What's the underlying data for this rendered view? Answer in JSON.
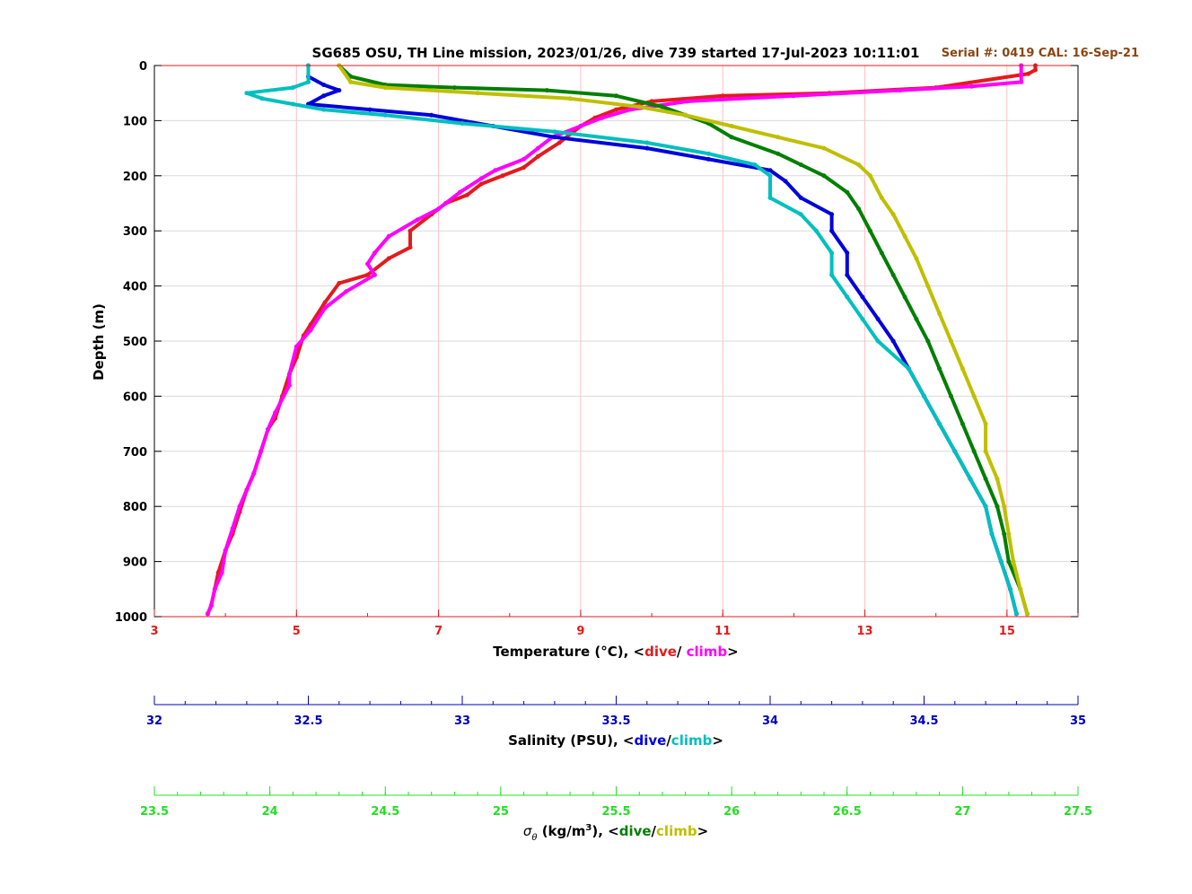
{
  "chart_data": {
    "type": "scatter",
    "title": "SG685 OSU, TH Line mission, 2023/01/26, dive 739 started 17-Jul-2023 10:11:01",
    "serial_label": "Serial #: 0419  CAL: 16-Sep-21",
    "ylabel": "Depth (m)",
    "ylim": [
      0,
      1000
    ],
    "y_reversed": true,
    "yticks": [
      "0",
      "100",
      "200",
      "300",
      "400",
      "500",
      "600",
      "700",
      "800",
      "900",
      "1000"
    ],
    "grid": true,
    "legend": "in axis labels",
    "colors": {
      "temp_dive": "#e41a1c",
      "temp_climb": "#ff00ff",
      "sal_dive": "#0000dd",
      "sal_climb": "#00bfbf",
      "sig_dive": "#007f00",
      "sig_climb": "#bfbf00",
      "temp_axis": "#e41a1c",
      "sal_axis": "#0000bb",
      "sig_axis": "#22e022",
      "serial": "#8b4513",
      "grid_temp": "#ffc0c8",
      "grid_depth": "#d9d9d9"
    },
    "axes": {
      "temperature": {
        "label_prefix": "Temperature (°C), <",
        "label_dive": "dive",
        "label_sep": "/ ",
        "label_climb": "climb",
        "label_suffix": ">",
        "range": [
          3,
          16
        ],
        "ticks": [
          "3",
          "5",
          "7",
          "9",
          "11",
          "13",
          "15"
        ]
      },
      "salinity": {
        "label_prefix": "Salinity (PSU), <",
        "label_dive": "dive",
        "label_sep": "/",
        "label_climb": "climb",
        "label_suffix": ">",
        "range": [
          32,
          35
        ],
        "ticks": [
          "32",
          "32.5",
          "33",
          "33.5",
          "34",
          "34.5",
          "35"
        ]
      },
      "density": {
        "label_sigma": "σ",
        "label_sub": "θ",
        "label_units_pre": " (kg/m",
        "label_sup": "3",
        "label_units_post": "), <",
        "label_dive": "dive",
        "label_sep": "/",
        "label_climb": "climb",
        "label_suffix": ">",
        "range": [
          23.5,
          27.5
        ],
        "ticks": [
          "23.5",
          "24",
          "24.5",
          "25",
          "25.5",
          "26",
          "26.5",
          "27",
          "27.5"
        ]
      }
    },
    "series": [
      {
        "axis": "temperature",
        "color_key": "temp_dive",
        "points": [
          [
            15.4,
            0
          ],
          [
            15.4,
            8
          ],
          [
            15.3,
            15
          ],
          [
            14.0,
            40
          ],
          [
            12.5,
            50
          ],
          [
            11.0,
            55
          ],
          [
            10.0,
            65
          ],
          [
            9.5,
            80
          ],
          [
            9.2,
            95
          ],
          [
            9.0,
            110
          ],
          [
            8.7,
            140
          ],
          [
            8.4,
            165
          ],
          [
            8.2,
            185
          ],
          [
            7.9,
            200
          ],
          [
            7.6,
            215
          ],
          [
            7.4,
            235
          ],
          [
            7.1,
            250
          ],
          [
            6.9,
            270
          ],
          [
            6.6,
            300
          ],
          [
            6.6,
            330
          ],
          [
            6.3,
            350
          ],
          [
            6.0,
            380
          ],
          [
            5.6,
            395
          ],
          [
            5.4,
            430
          ],
          [
            5.2,
            470
          ],
          [
            5.1,
            490
          ],
          [
            5.0,
            530
          ],
          [
            4.9,
            560
          ],
          [
            4.8,
            600
          ],
          [
            4.7,
            640
          ],
          [
            4.6,
            660
          ],
          [
            4.5,
            700
          ],
          [
            4.4,
            740
          ],
          [
            4.3,
            770
          ],
          [
            4.2,
            810
          ],
          [
            4.1,
            850
          ],
          [
            4.0,
            880
          ],
          [
            3.9,
            920
          ],
          [
            3.85,
            950
          ],
          [
            3.8,
            980
          ],
          [
            3.75,
            995
          ]
        ]
      },
      {
        "axis": "temperature",
        "color_key": "temp_climb",
        "points": [
          [
            15.2,
            0
          ],
          [
            15.2,
            30
          ],
          [
            14.5,
            38
          ],
          [
            13.5,
            45
          ],
          [
            12.0,
            55
          ],
          [
            10.5,
            65
          ],
          [
            9.7,
            80
          ],
          [
            9.3,
            95
          ],
          [
            9.0,
            110
          ],
          [
            8.6,
            130
          ],
          [
            8.4,
            150
          ],
          [
            8.2,
            170
          ],
          [
            7.8,
            190
          ],
          [
            7.6,
            205
          ],
          [
            7.3,
            230
          ],
          [
            7.0,
            260
          ],
          [
            6.7,
            280
          ],
          [
            6.3,
            310
          ],
          [
            6.1,
            340
          ],
          [
            6.0,
            360
          ],
          [
            6.1,
            380
          ],
          [
            5.7,
            410
          ],
          [
            5.4,
            440
          ],
          [
            5.2,
            480
          ],
          [
            5.0,
            510
          ],
          [
            4.9,
            560
          ],
          [
            4.9,
            580
          ],
          [
            4.7,
            630
          ],
          [
            4.6,
            660
          ],
          [
            4.5,
            700
          ],
          [
            4.4,
            740
          ],
          [
            4.2,
            800
          ],
          [
            4.1,
            840
          ],
          [
            4.0,
            880
          ],
          [
            3.95,
            920
          ],
          [
            3.85,
            950
          ],
          [
            3.8,
            980
          ],
          [
            3.75,
            995
          ]
        ]
      },
      {
        "axis": "salinity",
        "color_key": "sal_dive",
        "points": [
          [
            32.5,
            0
          ],
          [
            32.5,
            20
          ],
          [
            32.55,
            35
          ],
          [
            32.6,
            45
          ],
          [
            32.55,
            55
          ],
          [
            32.5,
            70
          ],
          [
            32.7,
            80
          ],
          [
            32.9,
            90
          ],
          [
            33.1,
            110
          ],
          [
            33.3,
            130
          ],
          [
            33.6,
            150
          ],
          [
            33.8,
            170
          ],
          [
            34.0,
            190
          ],
          [
            34.05,
            210
          ],
          [
            34.1,
            240
          ],
          [
            34.2,
            270
          ],
          [
            34.2,
            300
          ],
          [
            34.25,
            340
          ],
          [
            34.25,
            380
          ],
          [
            34.3,
            420
          ],
          [
            34.35,
            460
          ],
          [
            34.4,
            500
          ],
          [
            34.45,
            550
          ],
          [
            34.5,
            600
          ],
          [
            34.55,
            650
          ],
          [
            34.6,
            700
          ],
          [
            34.65,
            750
          ],
          [
            34.7,
            800
          ],
          [
            34.72,
            850
          ],
          [
            34.75,
            900
          ],
          [
            34.78,
            950
          ],
          [
            34.8,
            995
          ]
        ]
      },
      {
        "axis": "salinity",
        "color_key": "sal_climb",
        "points": [
          [
            32.5,
            0
          ],
          [
            32.5,
            30
          ],
          [
            32.45,
            40
          ],
          [
            32.3,
            50
          ],
          [
            32.35,
            60
          ],
          [
            32.45,
            70
          ],
          [
            32.55,
            80
          ],
          [
            32.75,
            90
          ],
          [
            33.0,
            105
          ],
          [
            33.3,
            120
          ],
          [
            33.6,
            140
          ],
          [
            33.8,
            160
          ],
          [
            33.95,
            180
          ],
          [
            34.0,
            200
          ],
          [
            34.0,
            240
          ],
          [
            34.1,
            270
          ],
          [
            34.15,
            300
          ],
          [
            34.2,
            340
          ],
          [
            34.2,
            380
          ],
          [
            34.25,
            420
          ],
          [
            34.3,
            460
          ],
          [
            34.35,
            500
          ],
          [
            34.45,
            550
          ],
          [
            34.5,
            600
          ],
          [
            34.55,
            650
          ],
          [
            34.6,
            700
          ],
          [
            34.65,
            750
          ],
          [
            34.7,
            800
          ],
          [
            34.72,
            850
          ],
          [
            34.75,
            900
          ],
          [
            34.78,
            950
          ],
          [
            34.8,
            995
          ]
        ]
      },
      {
        "axis": "density",
        "color_key": "sig_dive",
        "points": [
          [
            24.3,
            0
          ],
          [
            24.35,
            20
          ],
          [
            24.5,
            35
          ],
          [
            24.8,
            40
          ],
          [
            25.2,
            45
          ],
          [
            25.5,
            55
          ],
          [
            25.7,
            75
          ],
          [
            25.8,
            90
          ],
          [
            25.9,
            105
          ],
          [
            26.0,
            130
          ],
          [
            26.2,
            160
          ],
          [
            26.3,
            180
          ],
          [
            26.4,
            200
          ],
          [
            26.5,
            230
          ],
          [
            26.55,
            260
          ],
          [
            26.6,
            300
          ],
          [
            26.65,
            340
          ],
          [
            26.7,
            380
          ],
          [
            26.75,
            420
          ],
          [
            26.8,
            460
          ],
          [
            26.85,
            500
          ],
          [
            26.9,
            550
          ],
          [
            26.95,
            600
          ],
          [
            27.0,
            650
          ],
          [
            27.05,
            700
          ],
          [
            27.1,
            750
          ],
          [
            27.15,
            800
          ],
          [
            27.18,
            850
          ],
          [
            27.2,
            900
          ],
          [
            27.25,
            950
          ],
          [
            27.28,
            995
          ]
        ]
      },
      {
        "axis": "density",
        "color_key": "sig_climb",
        "points": [
          [
            24.3,
            0
          ],
          [
            24.35,
            30
          ],
          [
            24.5,
            40
          ],
          [
            24.9,
            50
          ],
          [
            25.3,
            60
          ],
          [
            25.6,
            75
          ],
          [
            25.8,
            90
          ],
          [
            26.0,
            110
          ],
          [
            26.2,
            130
          ],
          [
            26.4,
            150
          ],
          [
            26.55,
            180
          ],
          [
            26.6,
            200
          ],
          [
            26.65,
            240
          ],
          [
            26.7,
            270
          ],
          [
            26.75,
            310
          ],
          [
            26.8,
            350
          ],
          [
            26.85,
            400
          ],
          [
            26.9,
            450
          ],
          [
            26.95,
            500
          ],
          [
            27.0,
            550
          ],
          [
            27.05,
            600
          ],
          [
            27.1,
            650
          ],
          [
            27.1,
            700
          ],
          [
            27.15,
            750
          ],
          [
            27.18,
            800
          ],
          [
            27.2,
            850
          ],
          [
            27.22,
            900
          ],
          [
            27.25,
            950
          ],
          [
            27.28,
            995
          ]
        ]
      }
    ]
  }
}
